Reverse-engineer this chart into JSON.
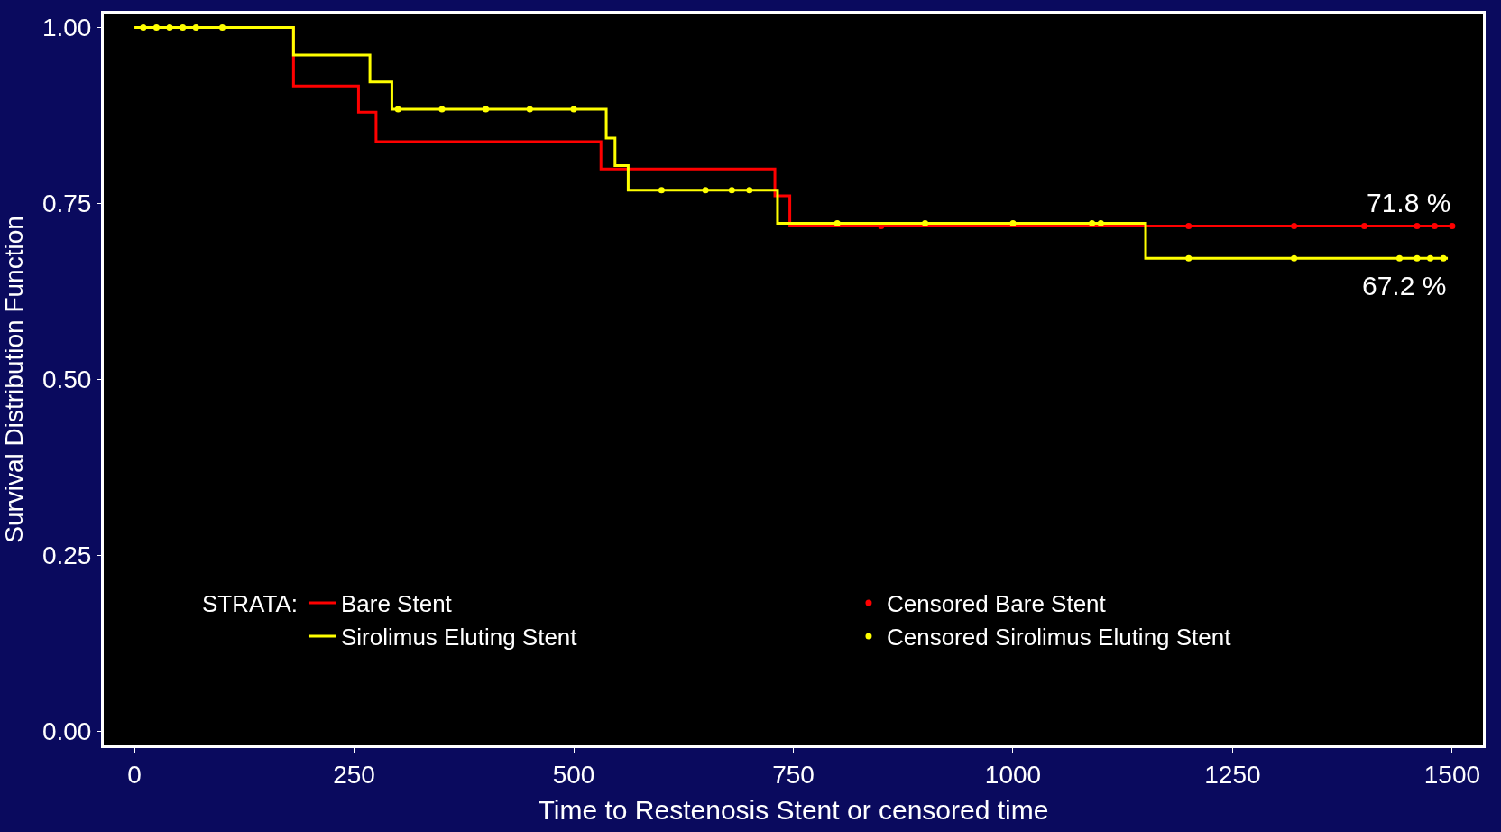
{
  "chart_data": {
    "type": "step",
    "xlabel": "Time to Restenosis Stent or censored time",
    "ylabel": "Survival Distribution Function",
    "legend_title": "STRATA:",
    "legend": "bottom",
    "grid": false,
    "xlim": [
      -35,
      1535
    ],
    "xticks": [
      0,
      250,
      500,
      750,
      1000,
      1250,
      1500
    ],
    "ylim": [
      -0.02,
      1.02
    ],
    "yticks": [
      {
        "value": 0,
        "label": "0.00"
      },
      {
        "value": 0.25,
        "label": "0.25"
      },
      {
        "value": 0.5,
        "label": "0.50"
      },
      {
        "value": 0.75,
        "label": "0.75"
      },
      {
        "value": 1,
        "label": "1.00"
      }
    ],
    "series": [
      {
        "name": "Bare Stent",
        "color": "#ff0000",
        "x": [
          0,
          181,
          255,
          275,
          531,
          729,
          746,
          1500
        ],
        "values": [
          1,
          0.917,
          0.88,
          0.838,
          0.799,
          0.761,
          0.718,
          0.718
        ]
      },
      {
        "name": "Censored Bare Stent",
        "color": "#ff0000",
        "type": "scatter",
        "marker": "circle",
        "x": [
          850,
          1200,
          1320,
          1400,
          1460,
          1480,
          1500
        ],
        "values": [
          0.718,
          0.718,
          0.718,
          0.718,
          0.718,
          0.718,
          0.718
        ]
      },
      {
        "name": "Sirolimus Eluting Stent",
        "color": "#ffff00",
        "x": [
          0,
          181,
          268,
          293,
          537,
          547,
          562,
          732,
          1151,
          1495
        ],
        "values": [
          1,
          0.961,
          0.923,
          0.884,
          0.843,
          0.804,
          0.769,
          0.722,
          0.672,
          0.672
        ]
      },
      {
        "name": "Censored Sirolimus Eluting Stent",
        "color": "#ffff00",
        "type": "scatter",
        "marker": "circle",
        "x": [
          10,
          25,
          40,
          55,
          70,
          100,
          300,
          350,
          400,
          450,
          500,
          600,
          650,
          680,
          700,
          800,
          900,
          1000,
          1090,
          1100,
          1200,
          1320,
          1440,
          1460,
          1475,
          1490
        ],
        "values": [
          1,
          1,
          1,
          1,
          1,
          1,
          0.884,
          0.884,
          0.884,
          0.884,
          0.884,
          0.769,
          0.769,
          0.769,
          0.769,
          0.722,
          0.722,
          0.722,
          0.722,
          0.722,
          0.672,
          0.672,
          0.672,
          0.672,
          0.672,
          0.672
        ]
      }
    ],
    "annotations": [
      {
        "text": "71.8 %",
        "x": 1500,
        "y": 0.718
      },
      {
        "text": "67.2 %",
        "x": 1495,
        "y": 0.672
      }
    ]
  }
}
